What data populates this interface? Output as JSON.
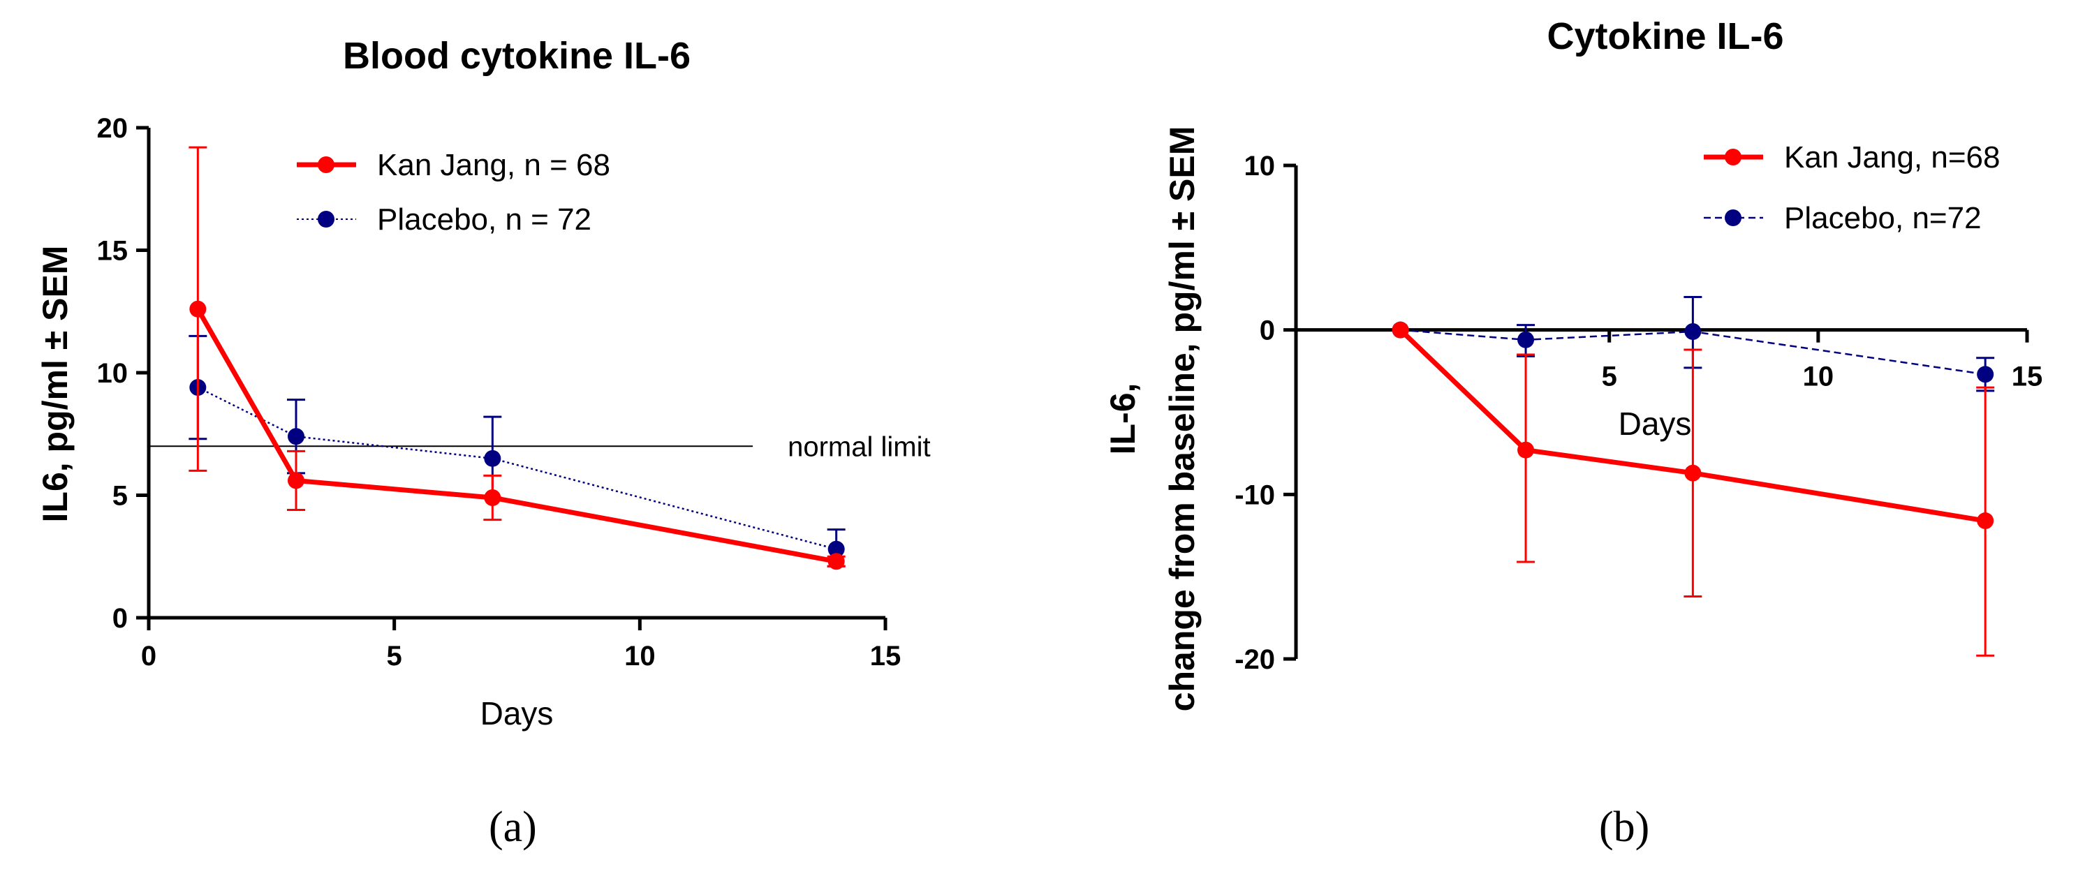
{
  "chart_data": [
    {
      "panel": "(a)",
      "type": "line",
      "title": "Blood cytokine IL-6",
      "xlabel": "Days",
      "ylabel": "IL6, pg/ml ± SEM",
      "xlim": [
        0,
        15
      ],
      "ylim": [
        0,
        20
      ],
      "xticks": [
        0,
        5,
        10,
        15
      ],
      "yticks": [
        0,
        5,
        10,
        15,
        20
      ],
      "grid": false,
      "legend_position": "top-right",
      "series": [
        {
          "name": "Kan Jang, n = 68",
          "color": "#ff0000",
          "style": "solid",
          "x": [
            1,
            3,
            7,
            14
          ],
          "y": [
            12.6,
            5.6,
            4.9,
            2.3
          ],
          "err_low": [
            6.0,
            4.4,
            4.0,
            2.1
          ],
          "err_high": [
            19.2,
            6.8,
            5.8,
            2.5
          ]
        },
        {
          "name": "Placebo, n = 72",
          "color": "#000080",
          "style": "dotted",
          "x": [
            1,
            3,
            7,
            14
          ],
          "y": [
            9.4,
            7.4,
            6.5,
            2.8
          ],
          "err_low": [
            7.3,
            5.9,
            4.9,
            2.1
          ],
          "err_high": [
            11.5,
            8.9,
            8.2,
            3.6
          ]
        }
      ],
      "annotations": [
        {
          "type": "hline",
          "y": 7,
          "x_end": 12.3,
          "text": "normal limit"
        }
      ]
    },
    {
      "panel": "(b)",
      "type": "line",
      "title": "Cytokine IL-6",
      "xlabel": "Days",
      "ylabel_line1": "IL-6,",
      "ylabel_line2": "change from baseline, pg/ml ± SEM",
      "xlim": [
        -2.5,
        15
      ],
      "ylim": [
        -20,
        10
      ],
      "xticks": [
        5,
        10,
        15
      ],
      "yticks": [
        10,
        0,
        -10,
        -20
      ],
      "grid": false,
      "legend_position": "top-right",
      "series": [
        {
          "name": "Kan Jang, n=68",
          "color": "#ff0000",
          "style": "solid",
          "x": [
            0,
            3,
            7,
            14
          ],
          "y": [
            0,
            -7.3,
            -8.7,
            -11.6
          ],
          "err_low": [
            0,
            -14.1,
            -16.2,
            -19.8
          ],
          "err_high": [
            0,
            -1.5,
            -1.2,
            -3.5
          ]
        },
        {
          "name": "Placebo, n=72",
          "color": "#000080",
          "style": "dashed",
          "x": [
            0,
            3,
            7,
            14
          ],
          "y": [
            0,
            -0.6,
            -0.1,
            -2.7
          ],
          "err_low": [
            0,
            -1.6,
            -2.3,
            -3.7
          ],
          "err_high": [
            0,
            0.3,
            2.0,
            -1.7
          ]
        }
      ]
    }
  ]
}
